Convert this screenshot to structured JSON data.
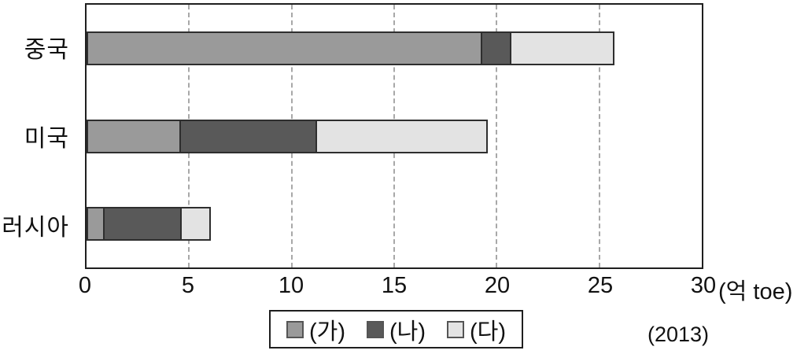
{
  "chart_data": {
    "type": "bar",
    "orientation": "horizontal",
    "stacked": true,
    "title": "",
    "categories": [
      "중국",
      "미국",
      "러시아"
    ],
    "series": [
      {
        "name": "(가)",
        "color": "#9a9a9a",
        "values": [
          19.3,
          4.6,
          0.9
        ]
      },
      {
        "name": "(나)",
        "color": "#595959",
        "values": [
          1.5,
          6.7,
          3.8
        ]
      },
      {
        "name": "(다)",
        "color": "#e3e3e3",
        "values": [
          5.1,
          8.4,
          1.5
        ]
      }
    ],
    "xlim": [
      0,
      30
    ],
    "xticks": [
      0,
      5,
      10,
      15,
      20,
      25,
      30
    ],
    "unit": "(억 toe)",
    "year": "(2013)",
    "grid": "vertical-dashed",
    "legend_position": "bottom-center",
    "colors": {
      "plot_border": "#1f1f1f",
      "gridline": "#a8a8a8",
      "segment_border": "#2e2e2e"
    }
  }
}
